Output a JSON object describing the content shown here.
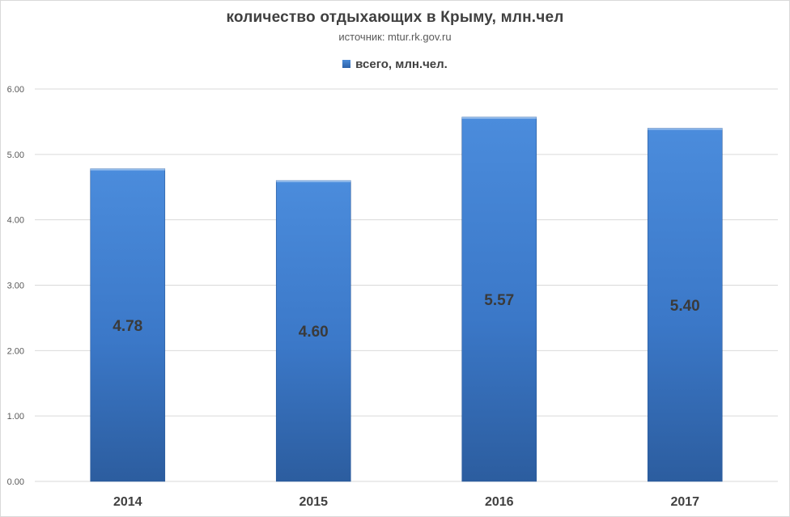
{
  "chart_data": {
    "type": "bar",
    "title": "количество отдыхающих в Крыму, млн.чел",
    "subtitle": "источник: mtur.rk.gov.ru",
    "legend_position": "top",
    "categories": [
      "2014",
      "2015",
      "2016",
      "2017"
    ],
    "series": [
      {
        "name": "всего, млн.чел.",
        "values": [
          4.78,
          4.6,
          5.57,
          5.4
        ],
        "color": "#3a78c9"
      }
    ],
    "data_labels": [
      "4.78",
      "4.60",
      "5.57",
      "5.40"
    ],
    "ylim": [
      0,
      6
    ],
    "yticks": [
      "0.00",
      "1.00",
      "2.00",
      "3.00",
      "4.00",
      "5.00",
      "6.00"
    ],
    "grid": true
  }
}
